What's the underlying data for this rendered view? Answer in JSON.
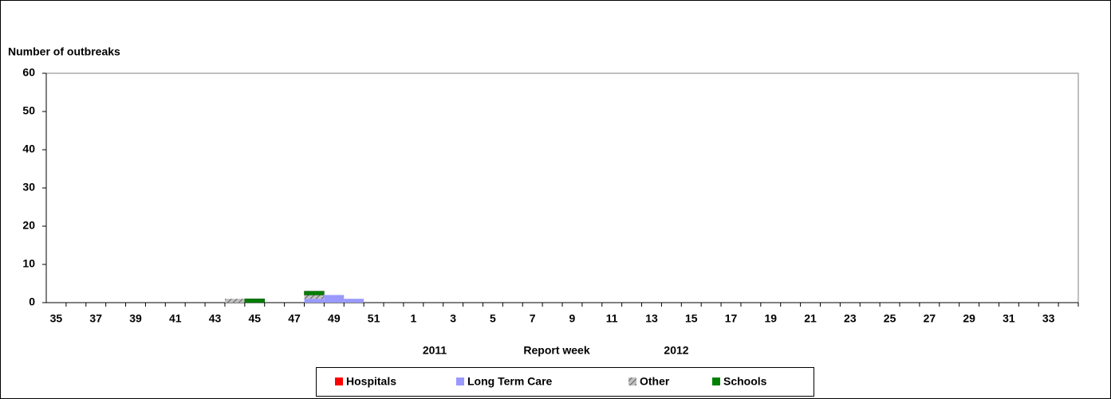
{
  "chart_data": {
    "type": "stacked-bar",
    "y_axis_label": "Number of outbreaks",
    "x_axis_label": "Report week",
    "annotations": [
      "2011",
      "2012"
    ],
    "categories": [
      "35",
      null,
      "37",
      null,
      "39",
      null,
      "41",
      null,
      "43",
      null,
      "45",
      null,
      "47",
      null,
      "49",
      null,
      "51",
      null,
      "1",
      null,
      "3",
      null,
      "5",
      null,
      "7",
      null,
      "9",
      null,
      "11",
      null,
      "13",
      null,
      "15",
      null,
      "17",
      null,
      "19",
      null,
      "21",
      null,
      "23",
      null,
      "25",
      null,
      "27",
      null,
      "29",
      null,
      "31",
      null,
      "33",
      null
    ],
    "series": [
      {
        "name": "Hospitals",
        "color": "#ff0000",
        "values": [
          0,
          0,
          0,
          0,
          0,
          0,
          0,
          0,
          0,
          0,
          0,
          0,
          0,
          0,
          0,
          0,
          0,
          0,
          0,
          0,
          0,
          0,
          0,
          0,
          0,
          0,
          0,
          0,
          0,
          0,
          0,
          0,
          0,
          0,
          0,
          0,
          0,
          0,
          0,
          0,
          0,
          0,
          0,
          0,
          0,
          0,
          0,
          0,
          0,
          0,
          0,
          0
        ]
      },
      {
        "name": "Long Term Care",
        "color": "#9999ff",
        "values": [
          0,
          0,
          0,
          0,
          0,
          0,
          0,
          0,
          0,
          0,
          0,
          0,
          0,
          1,
          2,
          1,
          0,
          0,
          0,
          0,
          0,
          0,
          0,
          0,
          0,
          0,
          0,
          0,
          0,
          0,
          0,
          0,
          0,
          0,
          0,
          0,
          0,
          0,
          0,
          0,
          0,
          0,
          0,
          0,
          0,
          0,
          0,
          0,
          0,
          0,
          0,
          0
        ]
      },
      {
        "name": "Other",
        "color": "#c0c0c0",
        "hatch": true,
        "values": [
          0,
          0,
          0,
          0,
          0,
          0,
          0,
          0,
          0,
          1,
          0,
          0,
          0,
          1,
          0,
          0,
          0,
          0,
          0,
          0,
          0,
          0,
          0,
          0,
          0,
          0,
          0,
          0,
          0,
          0,
          0,
          0,
          0,
          0,
          0,
          0,
          0,
          0,
          0,
          0,
          0,
          0,
          0,
          0,
          0,
          0,
          0,
          0,
          0,
          0,
          0,
          0
        ]
      },
      {
        "name": "Schools",
        "color": "#008000",
        "values": [
          0,
          0,
          0,
          0,
          0,
          0,
          0,
          0,
          0,
          0,
          1,
          0,
          0,
          1,
          0,
          0,
          0,
          0,
          0,
          0,
          0,
          0,
          0,
          0,
          0,
          0,
          0,
          0,
          0,
          0,
          0,
          0,
          0,
          0,
          0,
          0,
          0,
          0,
          0,
          0,
          0,
          0,
          0,
          0,
          0,
          0,
          0,
          0,
          0,
          0,
          0,
          0
        ]
      }
    ],
    "ylim": [
      0,
      60
    ],
    "yticks": [
      0,
      10,
      20,
      30,
      40,
      50,
      60
    ]
  }
}
